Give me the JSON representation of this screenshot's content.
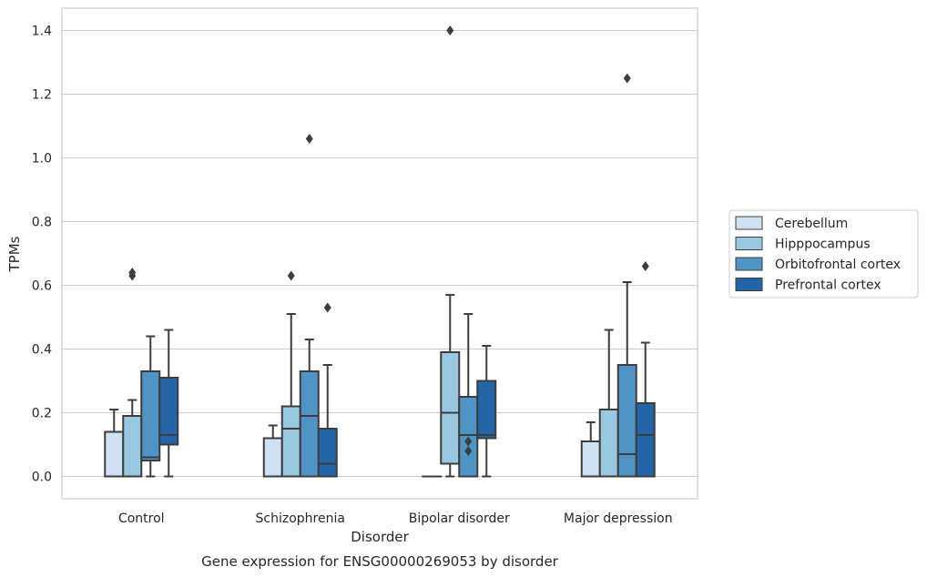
{
  "chart_data": {
    "type": "box",
    "caption": "Gene expression for ENSG00000269053 by disorder",
    "xlabel": "Disorder",
    "ylabel": "TPMs",
    "ylim": [
      -0.07,
      1.47
    ],
    "yticks": [
      "0.0",
      "0.2",
      "0.4",
      "0.6",
      "0.8",
      "1.0",
      "1.2",
      "1.4"
    ],
    "grid": "horizontal",
    "legend_position": "right",
    "categories": [
      "Control",
      "Schizophrenia",
      "Bipolar disorder",
      "Major depression"
    ],
    "series": [
      {
        "name": "Cerebellum",
        "color": "#d0e1f2",
        "boxes": [
          {
            "whislo": 0.0,
            "q1": 0.0,
            "med": 0.0,
            "q3": 0.14,
            "whishi": 0.21,
            "fliers": []
          },
          {
            "whislo": 0.0,
            "q1": 0.0,
            "med": 0.0,
            "q3": 0.12,
            "whishi": 0.16,
            "fliers": []
          },
          {
            "whislo": 0.0,
            "q1": 0.0,
            "med": 0.0,
            "q3": 0.0,
            "whishi": 0.0,
            "fliers": []
          },
          {
            "whislo": 0.0,
            "q1": 0.0,
            "med": 0.0,
            "q3": 0.11,
            "whishi": 0.17,
            "fliers": []
          }
        ]
      },
      {
        "name": "Hipppocampus",
        "color": "#9ac8e0",
        "boxes": [
          {
            "whislo": 0.0,
            "q1": 0.0,
            "med": 0.0,
            "q3": 0.19,
            "whishi": 0.24,
            "fliers": [
              0.63,
              0.64
            ]
          },
          {
            "whislo": 0.0,
            "q1": 0.0,
            "med": 0.15,
            "q3": 0.22,
            "whishi": 0.51,
            "fliers": [
              0.63
            ]
          },
          {
            "whislo": 0.0,
            "q1": 0.04,
            "med": 0.2,
            "q3": 0.39,
            "whishi": 0.57,
            "fliers": [
              1.4
            ]
          },
          {
            "whislo": 0.0,
            "q1": 0.0,
            "med": 0.0,
            "q3": 0.21,
            "whishi": 0.46,
            "fliers": []
          }
        ]
      },
      {
        "name": "Orbitofrontal cortex",
        "color": "#5093c5",
        "boxes": [
          {
            "whislo": 0.0,
            "q1": 0.05,
            "med": 0.06,
            "q3": 0.33,
            "whishi": 0.44,
            "fliers": []
          },
          {
            "whislo": 0.0,
            "q1": 0.0,
            "med": 0.19,
            "q3": 0.33,
            "whishi": 0.43,
            "fliers": [
              1.06
            ]
          },
          {
            "whislo": 0.0,
            "q1": 0.0,
            "med": 0.13,
            "q3": 0.25,
            "whishi": 0.51,
            "fliers": [
              0.08,
              0.11
            ]
          },
          {
            "whislo": 0.0,
            "q1": 0.0,
            "med": 0.07,
            "q3": 0.35,
            "whishi": 0.61,
            "fliers": [
              1.25
            ]
          }
        ]
      },
      {
        "name": "Prefrontal cortex",
        "color": "#2365a6",
        "boxes": [
          {
            "whislo": 0.0,
            "q1": 0.1,
            "med": 0.13,
            "q3": 0.31,
            "whishi": 0.46,
            "fliers": []
          },
          {
            "whislo": 0.0,
            "q1": 0.0,
            "med": 0.04,
            "q3": 0.15,
            "whishi": 0.35,
            "fliers": [
              0.53
            ]
          },
          {
            "whislo": 0.0,
            "q1": 0.12,
            "med": 0.13,
            "q3": 0.3,
            "whishi": 0.41,
            "fliers": []
          },
          {
            "whislo": 0.0,
            "q1": 0.0,
            "med": 0.13,
            "q3": 0.23,
            "whishi": 0.42,
            "fliers": [
              0.66
            ]
          }
        ]
      }
    ]
  }
}
